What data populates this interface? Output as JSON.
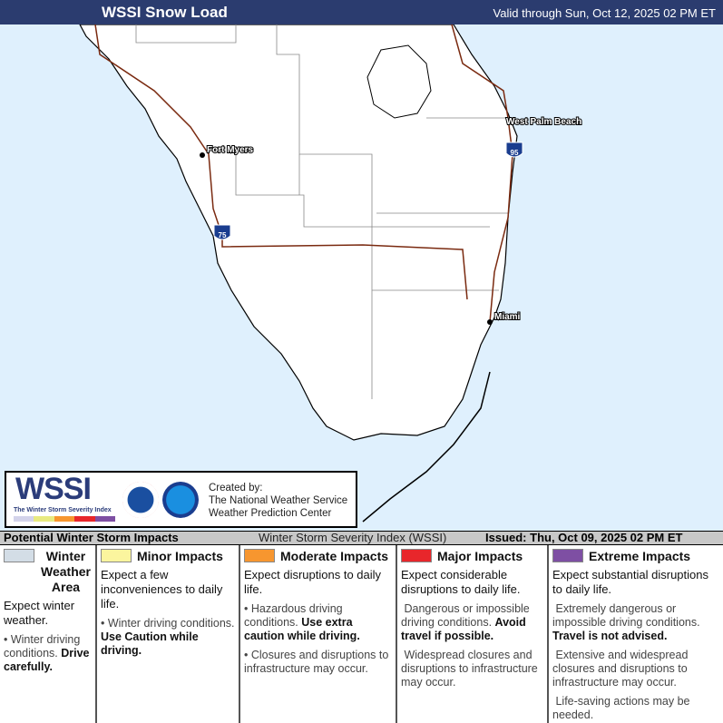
{
  "header": {
    "title": "WSSI Snow Load",
    "valid": "Valid through Sun, Oct 12, 2025 02 PM ET"
  },
  "map": {
    "cities": [
      "Fort Myers",
      "West Palm Beach",
      "Miami"
    ],
    "highways": [
      "75",
      "95"
    ],
    "colors": {
      "water": "#dff0fd",
      "land": "#ffffff",
      "roads": "#7a2a10"
    }
  },
  "logo": {
    "wordmark": "WSSI",
    "subtitle": "The Winter Storm Severity Index",
    "seal1": "National Weather Service",
    "seal2": "NOAA",
    "created_by": "Created by:",
    "org1": "The National Weather Service",
    "org2": "Weather Prediction Center"
  },
  "legend_bar": {
    "left": "Potential Winter Storm Impacts",
    "center": "Winter Storm Severity Index (WSSI)",
    "issued": "Issued: Thu, Oct 09, 2025 02 PM ET"
  },
  "categories": [
    {
      "title": "Winter Weather Area",
      "color": "#d3dde6",
      "lead": "Expect winter weather.",
      "bullets": [
        {
          "text": "Winter driving conditions. ",
          "bold": "Drive carefully."
        }
      ]
    },
    {
      "title": "Minor Impacts",
      "color": "#fbf59e",
      "lead": "Expect a few inconveniences to daily life.",
      "bullets": [
        {
          "text": "Winter driving conditions. ",
          "bold": "Use Caution while driving."
        }
      ]
    },
    {
      "title": "Moderate Impacts",
      "color": "#f7962f",
      "lead": "Expect disruptions to daily life.",
      "bullets": [
        {
          "text": "Hazardous driving conditions. ",
          "bold": "Use extra caution while driving."
        },
        {
          "text": "Closures and disruptions to infrastructure may occur.",
          "bold": ""
        }
      ]
    },
    {
      "title": "Major Impacts",
      "color": "#e8262b",
      "lead": "Expect considerable disruptions to daily life.",
      "bullets": [
        {
          "text": "Dangerous or impossible driving conditions. ",
          "bold": "Avoid travel if possible."
        },
        {
          "text": "Widespread closures and disruptions to infrastructure may occur.",
          "bold": ""
        }
      ]
    },
    {
      "title": "Extreme Impacts",
      "color": "#7e4fa3",
      "lead": "Expect substantial disruptions to daily life.",
      "bullets": [
        {
          "text": "Extremely dangerous or impossible driving conditions. ",
          "bold": "Travel is not advised."
        },
        {
          "text": "Extensive and widespread closures and disruptions to infrastructure may occur.",
          "bold": ""
        },
        {
          "text": "Life-saving actions may be needed.",
          "bold": ""
        }
      ]
    }
  ]
}
